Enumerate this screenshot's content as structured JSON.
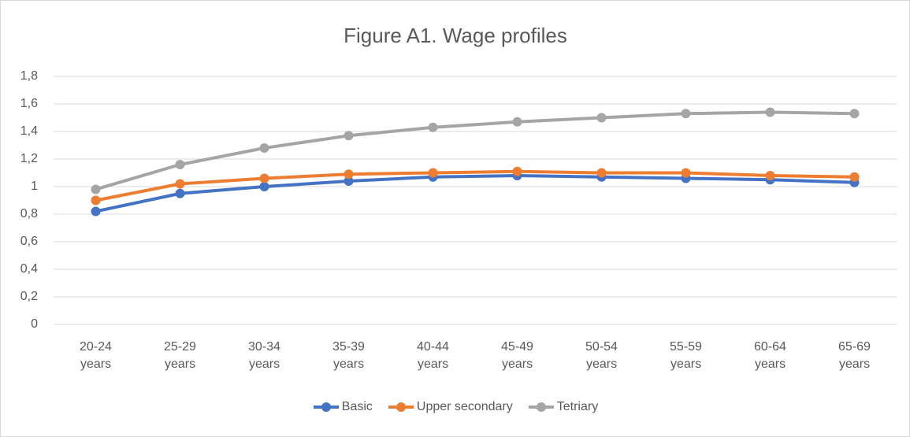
{
  "chart_data": {
    "type": "line",
    "title": "Figure A1. Wage profiles",
    "categories": [
      "20-24 years",
      "25-29 years",
      "30-34 years",
      "35-39 years",
      "40-44 years",
      "45-49 years",
      "50-54 years",
      "55-59 years",
      "60-64 years",
      "65-69 years"
    ],
    "series": [
      {
        "name": "Basic",
        "color": "#4472c4",
        "values": [
          0.82,
          0.95,
          1.0,
          1.04,
          1.07,
          1.08,
          1.07,
          1.06,
          1.05,
          1.03
        ]
      },
      {
        "name": "Upper secondary",
        "color": "#ed7d31",
        "values": [
          0.9,
          1.02,
          1.06,
          1.09,
          1.1,
          1.11,
          1.1,
          1.1,
          1.08,
          1.07
        ]
      },
      {
        "name": "Tetriary",
        "color": "#a5a5a5",
        "values": [
          0.98,
          1.16,
          1.28,
          1.37,
          1.43,
          1.47,
          1.5,
          1.53,
          1.54,
          1.53
        ]
      }
    ],
    "ylim": [
      0,
      1.8
    ],
    "yticks": [
      0,
      {
        "value": 0.2,
        "label": "0,2"
      },
      {
        "value": 0.4,
        "label": "0,4"
      },
      {
        "value": 0.6,
        "label": "0,6"
      },
      {
        "value": 0.8,
        "label": "0,8"
      },
      1,
      {
        "value": 1.2,
        "label": "1,2"
      },
      {
        "value": 1.4,
        "label": "1,4"
      },
      {
        "value": 1.6,
        "label": "1,6"
      },
      {
        "value": 1.8,
        "label": "1,8"
      }
    ],
    "grid": true,
    "legend": "bottom"
  }
}
